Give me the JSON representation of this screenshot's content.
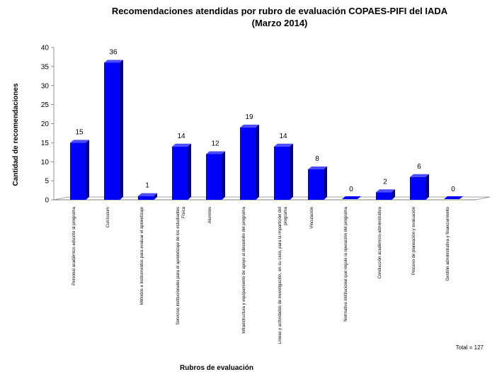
{
  "chart_data": {
    "type": "bar",
    "title": "Recomendaciones atendidas por rubro de evaluación COPAES-PIFI del IADA",
    "subtitle": "(Marzo 2014)",
    "xlabel": "Rubros de evaluación",
    "ylabel": "Cantidad de recomendaciones",
    "ylim": [
      0,
      40
    ],
    "yticks": [
      0,
      5,
      10,
      15,
      20,
      25,
      30,
      35,
      40
    ],
    "grid": false,
    "three_d": true,
    "bar_color": "#0000ff",
    "categories": [
      [
        "Personal académico adscrito al programa"
      ],
      [
        "Currículum"
      ],
      [
        "Métodos e instrumentos para evaluar el aprendizaje"
      ],
      [
        "Servicios institucionales para el aprendizaje de los estudiantes",
        "Física"
      ],
      [
        "Alumnos"
      ],
      [
        "Infraestructura y equipamiento de apoyo al desarrollo del programa"
      ],
      [
        "Líneas y actividades de investigación, en su caso, para la impartición del",
        "programa"
      ],
      [
        "Vinculación"
      ],
      [
        "Normativa institucional que regule la operación del programa"
      ],
      [
        "Conducción académico-administrativa"
      ],
      [
        "Proceso de planeación y evaluación"
      ],
      [
        "Gestión administrativa y financiamiento"
      ]
    ],
    "values": [
      15,
      36,
      1,
      14,
      12,
      19,
      14,
      8,
      0,
      2,
      6,
      0
    ],
    "annotation": "Total = 127"
  }
}
